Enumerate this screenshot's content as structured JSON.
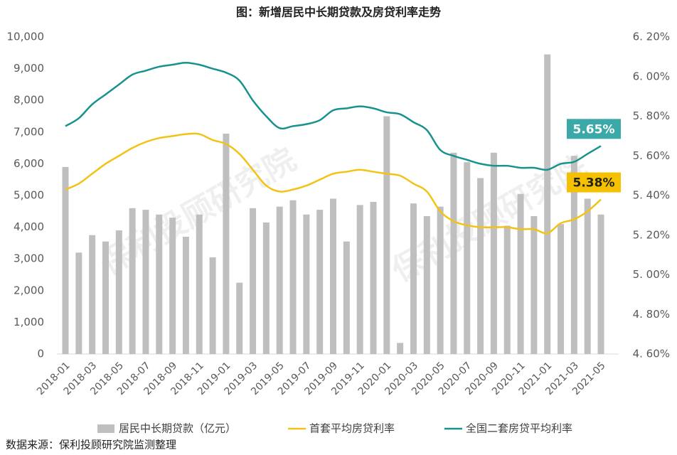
{
  "chart_data": {
    "type": "bar+line",
    "title": "图：新增居民中长期贷款及房贷利率走势",
    "source": "数据来源：保利投顾研究院监测整理",
    "watermark": "保利投顾研究院",
    "categories": [
      "2018-01",
      null,
      "2018-03",
      null,
      "2018-05",
      null,
      "2018-07",
      null,
      "2018-09",
      null,
      "2018-11",
      null,
      "2019-01",
      null,
      "2019-03",
      null,
      "2019-05",
      null,
      "2019-07",
      null,
      "2019-09",
      null,
      "2019-11",
      null,
      "2020-01",
      null,
      "2020-03",
      null,
      "2020-05",
      null,
      "2020-07",
      null,
      "2020-09",
      null,
      "2020-11",
      null,
      "2021-01",
      null,
      "2021-03",
      null,
      "2021-05"
    ],
    "series": [
      {
        "name": "居民中长期贷款（亿元）",
        "type": "bar",
        "color": "#bfbfbf",
        "axis": "y",
        "values": [
          5900,
          3200,
          3750,
          3550,
          3900,
          4600,
          4550,
          4400,
          4300,
          3700,
          4400,
          3050,
          6950,
          2250,
          4600,
          4150,
          4650,
          4850,
          4400,
          4550,
          4900,
          3550,
          4700,
          4800,
          7500,
          350,
          4750,
          4350,
          4650,
          6350,
          6050,
          5550,
          6350,
          4050,
          5050,
          4350,
          9450,
          4100,
          6250,
          4900,
          4400
        ]
      },
      {
        "name": "首套平均房贷利率",
        "type": "line",
        "color": "#f2c314",
        "axis": "y2",
        "label_color": "#f5c000",
        "label_text": "#222",
        "values": [
          5.43,
          5.46,
          5.51,
          5.56,
          5.6,
          5.64,
          5.67,
          5.69,
          5.7,
          5.71,
          5.71,
          5.68,
          5.66,
          5.61,
          5.53,
          5.45,
          5.42,
          5.43,
          5.45,
          5.48,
          5.51,
          5.52,
          5.53,
          5.52,
          5.51,
          5.5,
          5.46,
          5.42,
          5.32,
          5.27,
          5.25,
          5.24,
          5.24,
          5.24,
          5.23,
          5.23,
          5.21,
          5.26,
          5.28,
          5.32,
          5.38
        ],
        "value_labels": [
          null,
          null,
          null,
          null,
          null,
          null,
          null,
          null,
          null,
          null,
          null,
          null,
          null,
          null,
          null,
          null,
          null,
          null,
          null,
          null,
          null,
          null,
          null,
          null,
          null,
          null,
          null,
          null,
          null,
          null,
          null,
          null,
          null,
          null,
          null,
          null,
          null,
          null,
          null,
          null,
          "5.38%"
        ]
      },
      {
        "name": "全国二套房贷平均利率",
        "type": "line",
        "color": "#17928f",
        "axis": "y2",
        "label_color": "#3aa9a7",
        "label_text": "#fff",
        "values": [
          5.75,
          5.79,
          5.86,
          5.91,
          5.96,
          6.01,
          6.03,
          6.05,
          6.06,
          6.07,
          6.06,
          6.04,
          6.02,
          5.98,
          5.88,
          5.8,
          5.74,
          5.75,
          5.76,
          5.78,
          5.83,
          5.84,
          5.85,
          5.84,
          5.82,
          5.81,
          5.77,
          5.73,
          5.63,
          5.6,
          5.58,
          5.56,
          5.55,
          5.55,
          5.54,
          5.54,
          5.53,
          5.56,
          5.57,
          5.61,
          5.65
        ],
        "value_labels": [
          null,
          null,
          null,
          null,
          null,
          null,
          null,
          null,
          null,
          null,
          null,
          null,
          null,
          null,
          null,
          null,
          null,
          null,
          null,
          null,
          null,
          null,
          null,
          null,
          null,
          null,
          null,
          null,
          null,
          null,
          null,
          null,
          null,
          null,
          null,
          null,
          null,
          null,
          null,
          null,
          "5.65%"
        ]
      }
    ],
    "ylim": [
      0,
      10000
    ],
    "yticks": [
      0,
      {
        "value": 1000,
        "label": "1,000"
      },
      {
        "value": 2000,
        "label": "2,000"
      },
      {
        "value": 3000,
        "label": "3,000"
      },
      {
        "value": 4000,
        "label": "4,000"
      },
      {
        "value": 5000,
        "label": "5,000"
      },
      {
        "value": 6000,
        "label": "6,000"
      },
      {
        "value": 7000,
        "label": "7,000"
      },
      {
        "value": 8000,
        "label": "8,000"
      },
      {
        "value": 9000,
        "label": "9,000"
      },
      {
        "value": 10000,
        "label": "10,000"
      }
    ],
    "y2lim": [
      4.6,
      6.2
    ],
    "y2ticks": [
      {
        "value": 4.6,
        "label": "4. 60%"
      },
      {
        "value": 4.8,
        "label": "4. 80%"
      },
      {
        "value": 5.0,
        "label": "5. 00%"
      },
      {
        "value": 5.2,
        "label": "5. 20%"
      },
      {
        "value": 5.4,
        "label": "5. 40%"
      },
      {
        "value": 5.6,
        "label": "5. 60%"
      },
      {
        "value": 5.8,
        "label": "5. 80%"
      },
      {
        "value": 6.0,
        "label": "6. 00%"
      },
      {
        "value": 6.2,
        "label": "6. 20%"
      }
    ],
    "grid": false,
    "legend": "bottom"
  }
}
